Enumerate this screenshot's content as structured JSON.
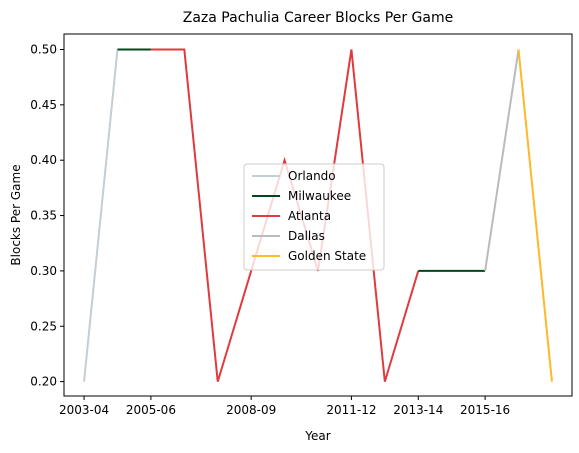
{
  "chart_data": {
    "type": "line",
    "title": "Zaza Pachulia Career Blocks Per Game",
    "xlabel": "Year",
    "ylabel": "Blocks Per Game",
    "x": [
      "2003-04",
      "2004-05",
      "2005-06",
      "2006-07",
      "2007-08",
      "2008-09",
      "2009-10",
      "2010-11",
      "2011-12",
      "2012-13",
      "2013-14",
      "2014-15",
      "2015-16",
      "2016-17",
      "2017-18"
    ],
    "x_tick_labels": [
      "2003-04",
      "2005-06",
      "2008-09",
      "2011-12",
      "2013-14",
      "2015-16"
    ],
    "y_ticks": [
      "0.20",
      "0.25",
      "0.30",
      "0.35",
      "0.40",
      "0.45",
      "0.50"
    ],
    "ylim": [
      0.187,
      0.514
    ],
    "grid": false,
    "legend_position": "center",
    "series": [
      {
        "name": "Orlando",
        "color": "#c4ced4",
        "points": [
          [
            "2003-04",
            0.2
          ],
          [
            "2004-05",
            0.5
          ]
        ]
      },
      {
        "name": "Milwaukee",
        "color": "#00471b",
        "points": [
          [
            "2004-05",
            0.5
          ],
          [
            "2005-06",
            0.5
          ]
        ]
      },
      {
        "name": "Atlanta",
        "color": "#e03a3e",
        "points": [
          [
            "2005-06",
            0.5
          ],
          [
            "2006-07",
            0.5
          ],
          [
            "2007-08",
            0.2
          ],
          [
            "2008-09",
            0.3
          ],
          [
            "2009-10",
            0.4
          ],
          [
            "2010-11",
            0.3
          ],
          [
            "2011-12",
            0.5
          ],
          [
            "2012-13",
            0.2
          ],
          [
            "2013-14",
            0.3
          ]
        ]
      },
      {
        "name": "Milwaukee",
        "color": "#00471b",
        "legend": false,
        "points": [
          [
            "2013-14",
            0.3
          ],
          [
            "2014-15",
            0.3
          ],
          [
            "2015-16",
            0.3
          ]
        ]
      },
      {
        "name": "Dallas",
        "color": "#bbbbbb",
        "points": [
          [
            "2015-16",
            0.3
          ],
          [
            "2016-17",
            0.5
          ]
        ]
      },
      {
        "name": "Golden State",
        "color": "#fdb927",
        "points": [
          [
            "2016-17",
            0.5
          ],
          [
            "2017-18",
            0.2
          ]
        ]
      }
    ]
  }
}
